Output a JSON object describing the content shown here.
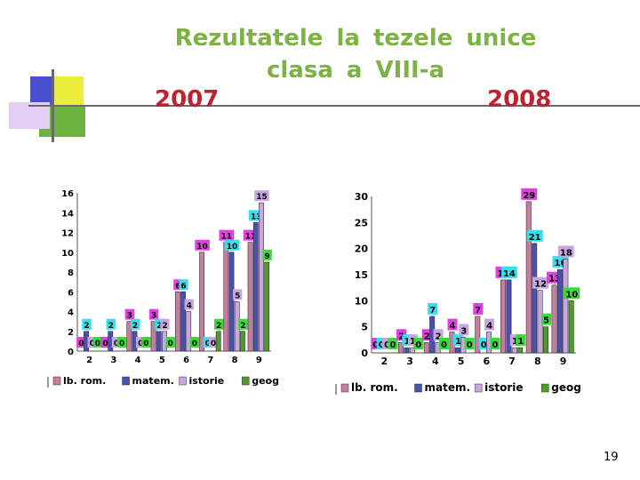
{
  "title_line1": "Rezultatele  la  tezele  unice",
  "title_line2": "clasa  a  VIII-a",
  "year_left": "2007",
  "year_right": "2008",
  "page_number": "19",
  "colors": {
    "title": "#7cb342",
    "year": "#c0212f",
    "lb_rom": "#c77da0",
    "matem": "#4b4fb0",
    "istorie": "#c9a6e0",
    "geog": "#4e9a2a",
    "label_cyan": "#33e0ee",
    "label_magenta": "#e040e0",
    "label_green": "#33dd33",
    "label_lilac": "#c9a6e0",
    "deco_blue": "#4a4fcf",
    "deco_yellow": "#ecec3a",
    "deco_green": "#6db33f",
    "deco_lavender": "#e3cff3"
  },
  "chart_data": [
    {
      "type": "bar",
      "year": "2007",
      "categories": [
        "2",
        "3",
        "4",
        "5",
        "6",
        "7",
        "8",
        "9"
      ],
      "ylim": [
        0,
        16
      ],
      "yticks": [
        "0",
        "2",
        "4",
        "6",
        "8",
        "10",
        "12",
        "14",
        "16"
      ],
      "legend": [
        "lb. rom.",
        "matem.",
        "istorie",
        "geog"
      ],
      "legend_position": "bottom",
      "series": [
        {
          "name": "lb. rom.",
          "values": [
            0,
            0,
            3,
            3,
            6,
            10,
            11,
            11
          ]
        },
        {
          "name": "matem.",
          "values": [
            2,
            2,
            2,
            2,
            6,
            0,
            10,
            13
          ]
        },
        {
          "name": "istorie",
          "values": [
            0,
            0,
            0,
            2,
            4,
            0,
            5,
            15
          ]
        },
        {
          "name": "geog",
          "values": [
            0,
            0,
            0,
            0,
            0,
            2,
            2,
            9
          ]
        }
      ]
    },
    {
      "type": "bar",
      "year": "2008",
      "categories": [
        "2",
        "3",
        "4",
        "5",
        "6",
        "7",
        "8",
        "9"
      ],
      "ylim": [
        0,
        30
      ],
      "yticks": [
        "0",
        "5",
        "10",
        "15",
        "20",
        "25",
        "30"
      ],
      "legend": [
        "lb. rom.",
        "matem.",
        "istorie",
        "geog"
      ],
      "legend_position": "bottom",
      "series": [
        {
          "name": "lb. rom.",
          "values": [
            0,
            2,
            2,
            4,
            7,
            14,
            29,
            13
          ]
        },
        {
          "name": "matem.",
          "values": [
            0,
            1,
            7,
            1,
            0,
            14,
            21,
            16
          ]
        },
        {
          "name": "istorie",
          "values": [
            0,
            1,
            2,
            3,
            4,
            1,
            12,
            18
          ]
        },
        {
          "name": "geog",
          "values": [
            0,
            0,
            0,
            0,
            0,
            1,
            5,
            10
          ]
        }
      ]
    }
  ]
}
